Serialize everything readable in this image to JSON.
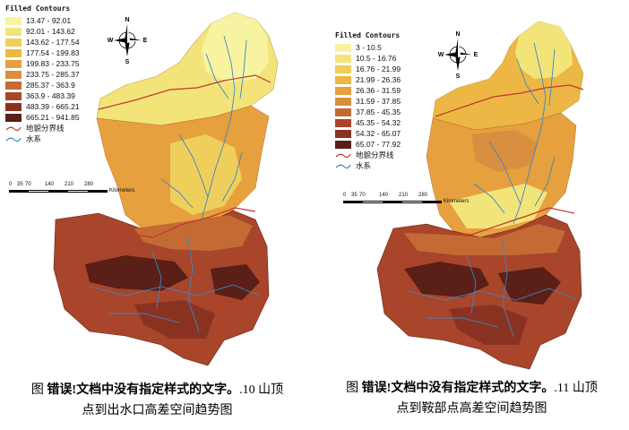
{
  "left_map": {
    "legend_title": "Filled Contours",
    "classes": [
      {
        "label": "13.47 - 92.01",
        "color": "#f7f3a0"
      },
      {
        "label": "92.01 - 143.62",
        "color": "#f3e47a"
      },
      {
        "label": "143.62 - 177.54",
        "color": "#efcf5c"
      },
      {
        "label": "177.54 - 199.83",
        "color": "#ecb744"
      },
      {
        "label": "199.83 - 233.75",
        "color": "#e6a03d"
      },
      {
        "label": "233.75 - 285.37",
        "color": "#d98f3f"
      },
      {
        "label": "285.37 - 363.9",
        "color": "#c46b35"
      },
      {
        "label": "363.9 - 483.39",
        "color": "#a8452a"
      },
      {
        "label": "483.39 - 665.21",
        "color": "#8a3222"
      },
      {
        "label": "665.21 - 941.85",
        "color": "#5a1f16"
      }
    ],
    "line_items": [
      {
        "label": "地貌分界线",
        "color": "#c0392b"
      },
      {
        "label": "水系",
        "color": "#3a86c8"
      }
    ],
    "scale_ticks": [
      "0",
      "35",
      "70",
      "140",
      "210",
      "280"
    ],
    "scale_unit": "Kilometers",
    "compass": {
      "n": "N",
      "s": "S",
      "e": "E",
      "w": "W"
    }
  },
  "right_map": {
    "legend_title": "Filled Contours",
    "classes": [
      {
        "label": "3 - 10.5",
        "color": "#f7f3a0"
      },
      {
        "label": "10.5 - 16.76",
        "color": "#f3e47a"
      },
      {
        "label": "16.76 - 21.99",
        "color": "#efcf5c"
      },
      {
        "label": "21.99 - 26.36",
        "color": "#ecb744"
      },
      {
        "label": "26.36 - 31.59",
        "color": "#e6a03d"
      },
      {
        "label": "31.59 - 37.85",
        "color": "#d98f3f"
      },
      {
        "label": "37.85 - 45.35",
        "color": "#c46b35"
      },
      {
        "label": "45.35 - 54.32",
        "color": "#a8452a"
      },
      {
        "label": "54.32 - 65.07",
        "color": "#8a3222"
      },
      {
        "label": "65.07 - 77.92",
        "color": "#5a1f16"
      }
    ],
    "line_items": [
      {
        "label": "地貌分界线",
        "color": "#c0392b"
      },
      {
        "label": "水系",
        "color": "#3a86c8"
      }
    ],
    "scale_ticks": [
      "0",
      "35",
      "70",
      "140",
      "210",
      "280"
    ],
    "scale_unit": "Kilometers",
    "compass": {
      "n": "N",
      "s": "S",
      "e": "E",
      "w": "W"
    }
  },
  "captions": {
    "left": {
      "prefix": "图 ",
      "bold": "错误!文档中没有指定样式的文字。",
      "rest": ".10 山顶",
      "line2": "点到出水口高差空间趋势图"
    },
    "right": {
      "prefix": "图 ",
      "bold": "错误!文档中没有指定样式的文字。",
      "rest": ".11 山顶",
      "line2": "点到鞍部点高差空间趋势图"
    }
  }
}
